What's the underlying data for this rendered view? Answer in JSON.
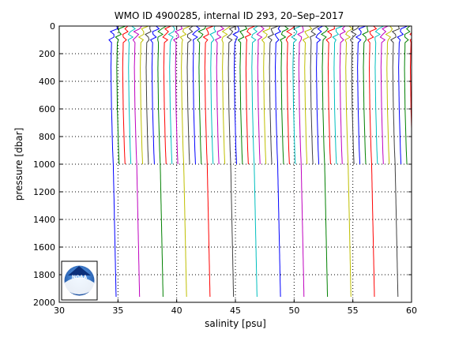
{
  "chart_data": {
    "type": "line",
    "title": "WMO ID 4900285, internal ID 293, 20–Sep–2017",
    "xlabel": "salinity [psu]",
    "ylabel": "pressure [dbar]",
    "xlim": [
      30,
      60
    ],
    "ylim": [
      0,
      2000
    ],
    "y_reversed": true,
    "xticks": [
      "30",
      "35",
      "40",
      "45",
      "50",
      "55",
      "60"
    ],
    "yticks": [
      "0",
      "200",
      "400",
      "600",
      "800",
      "1000",
      "1200",
      "1400",
      "1600",
      "1800",
      "2000"
    ],
    "grid": "dotted",
    "profile_offset_psu": 0.5,
    "profile_count": 66,
    "deep_profile_count": 15,
    "color_cycle": [
      "#0000ff",
      "#008000",
      "#ff0000",
      "#00bfbf",
      "#bf00bf",
      "#bfbf00",
      "#404040"
    ],
    "profile_shape_psu": [
      {
        "p": 0,
        "s": 34.9
      },
      {
        "p": 40,
        "s": 34.6
      },
      {
        "p": 120,
        "s": 34.45
      },
      {
        "p": 300,
        "s": 34.4
      },
      {
        "p": 600,
        "s": 34.45
      },
      {
        "p": 900,
        "s": 34.55
      },
      {
        "p": 1000,
        "s": 34.6
      },
      {
        "p": 1400,
        "s": 34.7
      },
      {
        "p": 2000,
        "s": 34.85
      }
    ],
    "logo": "NOAA"
  }
}
